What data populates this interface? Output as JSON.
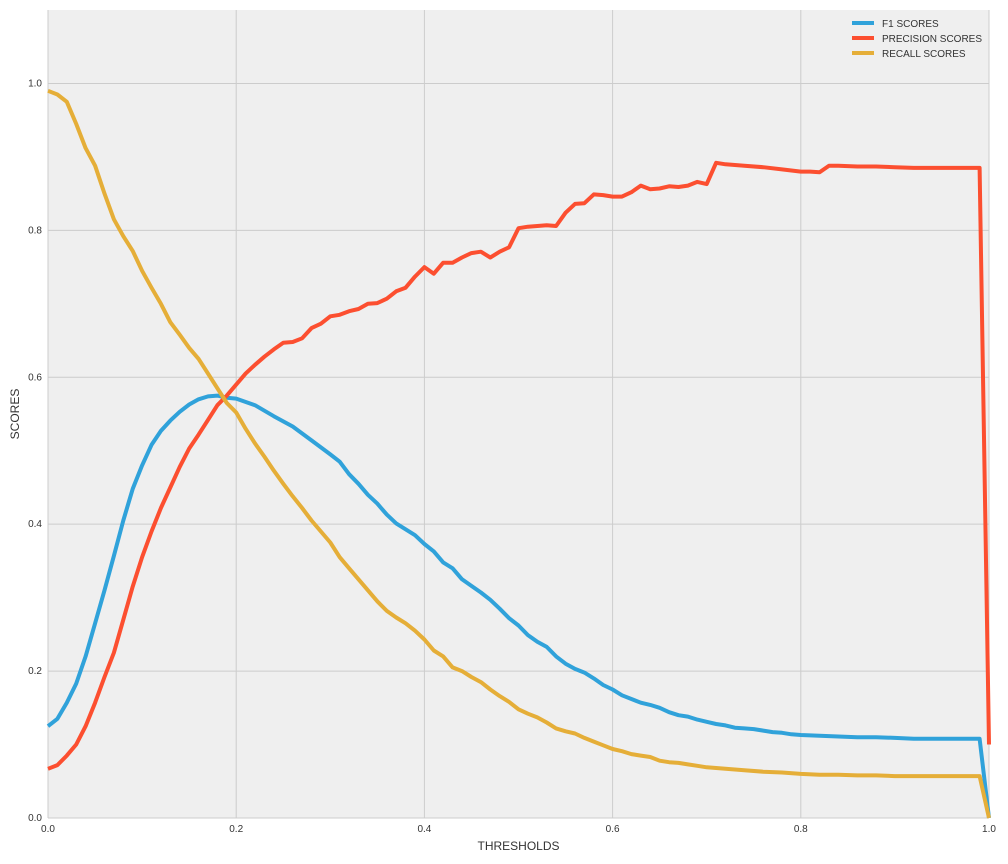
{
  "chart_data": {
    "type": "line",
    "title": "",
    "xlabel": "THRESHOLDS",
    "ylabel": "SCORES",
    "xlim": [
      0,
      1.0
    ],
    "ylim": [
      0,
      1.1
    ],
    "x_ticks": [
      0.0,
      0.2,
      0.4,
      0.6,
      0.8,
      1.0
    ],
    "x_tick_labels": [
      "0.0",
      "0.2",
      "0.4",
      "0.6",
      "0.8",
      "1.0"
    ],
    "y_ticks": [
      0.0,
      0.2,
      0.4,
      0.6,
      0.8,
      1.0
    ],
    "y_tick_labels": [
      "0.0",
      "0.2",
      "0.4",
      "0.6",
      "0.8",
      "1.0"
    ],
    "grid": true,
    "legend_position": "top-right",
    "background": "#efefef",
    "grid_color": "#cccccc",
    "series": [
      {
        "name": "F1 SCORES",
        "color": "#30a2da",
        "points": [
          [
            0.0,
            0.125
          ],
          [
            0.01,
            0.135
          ],
          [
            0.02,
            0.157
          ],
          [
            0.03,
            0.183
          ],
          [
            0.04,
            0.22
          ],
          [
            0.05,
            0.265
          ],
          [
            0.06,
            0.31
          ],
          [
            0.07,
            0.357
          ],
          [
            0.08,
            0.405
          ],
          [
            0.09,
            0.448
          ],
          [
            0.1,
            0.48
          ],
          [
            0.11,
            0.508
          ],
          [
            0.12,
            0.527
          ],
          [
            0.13,
            0.541
          ],
          [
            0.14,
            0.553
          ],
          [
            0.15,
            0.563
          ],
          [
            0.16,
            0.57
          ],
          [
            0.17,
            0.574
          ],
          [
            0.18,
            0.575
          ],
          [
            0.19,
            0.572
          ],
          [
            0.2,
            0.571
          ],
          [
            0.22,
            0.562
          ],
          [
            0.24,
            0.547
          ],
          [
            0.26,
            0.533
          ],
          [
            0.28,
            0.514
          ],
          [
            0.3,
            0.495
          ],
          [
            0.31,
            0.485
          ],
          [
            0.32,
            0.468
          ],
          [
            0.33,
            0.455
          ],
          [
            0.34,
            0.44
          ],
          [
            0.35,
            0.428
          ],
          [
            0.36,
            0.413
          ],
          [
            0.37,
            0.401
          ],
          [
            0.38,
            0.393
          ],
          [
            0.39,
            0.385
          ],
          [
            0.4,
            0.373
          ],
          [
            0.41,
            0.363
          ],
          [
            0.42,
            0.348
          ],
          [
            0.43,
            0.34
          ],
          [
            0.44,
            0.325
          ],
          [
            0.45,
            0.316
          ],
          [
            0.46,
            0.307
          ],
          [
            0.47,
            0.297
          ],
          [
            0.48,
            0.285
          ],
          [
            0.49,
            0.272
          ],
          [
            0.5,
            0.262
          ],
          [
            0.51,
            0.249
          ],
          [
            0.52,
            0.24
          ],
          [
            0.53,
            0.233
          ],
          [
            0.54,
            0.22
          ],
          [
            0.55,
            0.21
          ],
          [
            0.56,
            0.203
          ],
          [
            0.57,
            0.198
          ],
          [
            0.58,
            0.19
          ],
          [
            0.59,
            0.181
          ],
          [
            0.6,
            0.175
          ],
          [
            0.61,
            0.167
          ],
          [
            0.62,
            0.162
          ],
          [
            0.63,
            0.157
          ],
          [
            0.64,
            0.154
          ],
          [
            0.65,
            0.15
          ],
          [
            0.66,
            0.144
          ],
          [
            0.67,
            0.14
          ],
          [
            0.68,
            0.138
          ],
          [
            0.69,
            0.134
          ],
          [
            0.7,
            0.131
          ],
          [
            0.71,
            0.128
          ],
          [
            0.72,
            0.126
          ],
          [
            0.73,
            0.123
          ],
          [
            0.74,
            0.122
          ],
          [
            0.75,
            0.121
          ],
          [
            0.76,
            0.119
          ],
          [
            0.77,
            0.117
          ],
          [
            0.78,
            0.116
          ],
          [
            0.79,
            0.114
          ],
          [
            0.8,
            0.113
          ],
          [
            0.82,
            0.112
          ],
          [
            0.84,
            0.111
          ],
          [
            0.86,
            0.11
          ],
          [
            0.88,
            0.11
          ],
          [
            0.9,
            0.109
          ],
          [
            0.92,
            0.108
          ],
          [
            0.95,
            0.108
          ],
          [
            0.99,
            0.108
          ],
          [
            1.0,
            0.0
          ]
        ]
      },
      {
        "name": "PRECISION SCORES",
        "color": "#fc4f30",
        "points": [
          [
            0.0,
            0.067
          ],
          [
            0.01,
            0.072
          ],
          [
            0.02,
            0.085
          ],
          [
            0.03,
            0.1
          ],
          [
            0.04,
            0.125
          ],
          [
            0.05,
            0.157
          ],
          [
            0.06,
            0.192
          ],
          [
            0.07,
            0.225
          ],
          [
            0.08,
            0.27
          ],
          [
            0.09,
            0.315
          ],
          [
            0.1,
            0.355
          ],
          [
            0.11,
            0.39
          ],
          [
            0.12,
            0.422
          ],
          [
            0.13,
            0.45
          ],
          [
            0.14,
            0.478
          ],
          [
            0.15,
            0.503
          ],
          [
            0.16,
            0.522
          ],
          [
            0.17,
            0.542
          ],
          [
            0.18,
            0.562
          ],
          [
            0.19,
            0.575
          ],
          [
            0.2,
            0.59
          ],
          [
            0.21,
            0.605
          ],
          [
            0.22,
            0.617
          ],
          [
            0.23,
            0.628
          ],
          [
            0.24,
            0.638
          ],
          [
            0.25,
            0.647
          ],
          [
            0.26,
            0.648
          ],
          [
            0.27,
            0.653
          ],
          [
            0.28,
            0.667
          ],
          [
            0.29,
            0.673
          ],
          [
            0.3,
            0.683
          ],
          [
            0.31,
            0.685
          ],
          [
            0.32,
            0.69
          ],
          [
            0.33,
            0.693
          ],
          [
            0.34,
            0.7
          ],
          [
            0.35,
            0.701
          ],
          [
            0.36,
            0.707
          ],
          [
            0.37,
            0.717
          ],
          [
            0.38,
            0.722
          ],
          [
            0.39,
            0.737
          ],
          [
            0.4,
            0.75
          ],
          [
            0.41,
            0.741
          ],
          [
            0.42,
            0.756
          ],
          [
            0.43,
            0.756
          ],
          [
            0.44,
            0.763
          ],
          [
            0.45,
            0.769
          ],
          [
            0.46,
            0.771
          ],
          [
            0.47,
            0.763
          ],
          [
            0.48,
            0.771
          ],
          [
            0.49,
            0.777
          ],
          [
            0.5,
            0.803
          ],
          [
            0.51,
            0.805
          ],
          [
            0.52,
            0.806
          ],
          [
            0.53,
            0.807
          ],
          [
            0.54,
            0.806
          ],
          [
            0.55,
            0.824
          ],
          [
            0.56,
            0.836
          ],
          [
            0.57,
            0.837
          ],
          [
            0.58,
            0.849
          ],
          [
            0.59,
            0.848
          ],
          [
            0.6,
            0.846
          ],
          [
            0.61,
            0.846
          ],
          [
            0.62,
            0.852
          ],
          [
            0.63,
            0.861
          ],
          [
            0.64,
            0.856
          ],
          [
            0.65,
            0.857
          ],
          [
            0.66,
            0.86
          ],
          [
            0.67,
            0.859
          ],
          [
            0.68,
            0.861
          ],
          [
            0.69,
            0.866
          ],
          [
            0.7,
            0.863
          ],
          [
            0.71,
            0.892
          ],
          [
            0.72,
            0.89
          ],
          [
            0.74,
            0.888
          ],
          [
            0.76,
            0.886
          ],
          [
            0.78,
            0.883
          ],
          [
            0.8,
            0.88
          ],
          [
            0.81,
            0.88
          ],
          [
            0.82,
            0.879
          ],
          [
            0.83,
            0.888
          ],
          [
            0.84,
            0.888
          ],
          [
            0.86,
            0.887
          ],
          [
            0.88,
            0.887
          ],
          [
            0.9,
            0.886
          ],
          [
            0.92,
            0.885
          ],
          [
            0.95,
            0.885
          ],
          [
            0.99,
            0.885
          ],
          [
            1.0,
            0.1
          ]
        ]
      },
      {
        "name": "RECALL SCORES",
        "color": "#e5ae38",
        "points": [
          [
            0.0,
            0.99
          ],
          [
            0.01,
            0.985
          ],
          [
            0.02,
            0.975
          ],
          [
            0.03,
            0.945
          ],
          [
            0.04,
            0.912
          ],
          [
            0.05,
            0.888
          ],
          [
            0.06,
            0.85
          ],
          [
            0.07,
            0.815
          ],
          [
            0.08,
            0.792
          ],
          [
            0.09,
            0.772
          ],
          [
            0.1,
            0.745
          ],
          [
            0.11,
            0.722
          ],
          [
            0.12,
            0.7
          ],
          [
            0.13,
            0.675
          ],
          [
            0.14,
            0.658
          ],
          [
            0.15,
            0.64
          ],
          [
            0.16,
            0.625
          ],
          [
            0.17,
            0.605
          ],
          [
            0.18,
            0.585
          ],
          [
            0.19,
            0.565
          ],
          [
            0.2,
            0.552
          ],
          [
            0.21,
            0.53
          ],
          [
            0.22,
            0.51
          ],
          [
            0.23,
            0.492
          ],
          [
            0.24,
            0.473
          ],
          [
            0.25,
            0.455
          ],
          [
            0.26,
            0.438
          ],
          [
            0.27,
            0.422
          ],
          [
            0.28,
            0.405
          ],
          [
            0.29,
            0.39
          ],
          [
            0.3,
            0.375
          ],
          [
            0.31,
            0.355
          ],
          [
            0.32,
            0.34
          ],
          [
            0.33,
            0.325
          ],
          [
            0.34,
            0.31
          ],
          [
            0.35,
            0.295
          ],
          [
            0.36,
            0.282
          ],
          [
            0.37,
            0.273
          ],
          [
            0.38,
            0.265
          ],
          [
            0.39,
            0.255
          ],
          [
            0.4,
            0.243
          ],
          [
            0.41,
            0.228
          ],
          [
            0.42,
            0.22
          ],
          [
            0.43,
            0.205
          ],
          [
            0.44,
            0.2
          ],
          [
            0.45,
            0.192
          ],
          [
            0.46,
            0.185
          ],
          [
            0.47,
            0.175
          ],
          [
            0.48,
            0.166
          ],
          [
            0.49,
            0.158
          ],
          [
            0.5,
            0.148
          ],
          [
            0.51,
            0.142
          ],
          [
            0.52,
            0.137
          ],
          [
            0.53,
            0.13
          ],
          [
            0.54,
            0.122
          ],
          [
            0.55,
            0.118
          ],
          [
            0.56,
            0.115
          ],
          [
            0.57,
            0.109
          ],
          [
            0.58,
            0.104
          ],
          [
            0.59,
            0.099
          ],
          [
            0.6,
            0.094
          ],
          [
            0.61,
            0.091
          ],
          [
            0.62,
            0.087
          ],
          [
            0.63,
            0.085
          ],
          [
            0.64,
            0.083
          ],
          [
            0.65,
            0.078
          ],
          [
            0.66,
            0.076
          ],
          [
            0.67,
            0.075
          ],
          [
            0.68,
            0.073
          ],
          [
            0.69,
            0.071
          ],
          [
            0.7,
            0.069
          ],
          [
            0.72,
            0.067
          ],
          [
            0.74,
            0.065
          ],
          [
            0.76,
            0.063
          ],
          [
            0.78,
            0.062
          ],
          [
            0.8,
            0.06
          ],
          [
            0.82,
            0.059
          ],
          [
            0.84,
            0.059
          ],
          [
            0.86,
            0.058
          ],
          [
            0.88,
            0.058
          ],
          [
            0.9,
            0.057
          ],
          [
            0.92,
            0.057
          ],
          [
            0.95,
            0.057
          ],
          [
            0.99,
            0.057
          ],
          [
            1.0,
            0.0
          ]
        ]
      }
    ]
  }
}
